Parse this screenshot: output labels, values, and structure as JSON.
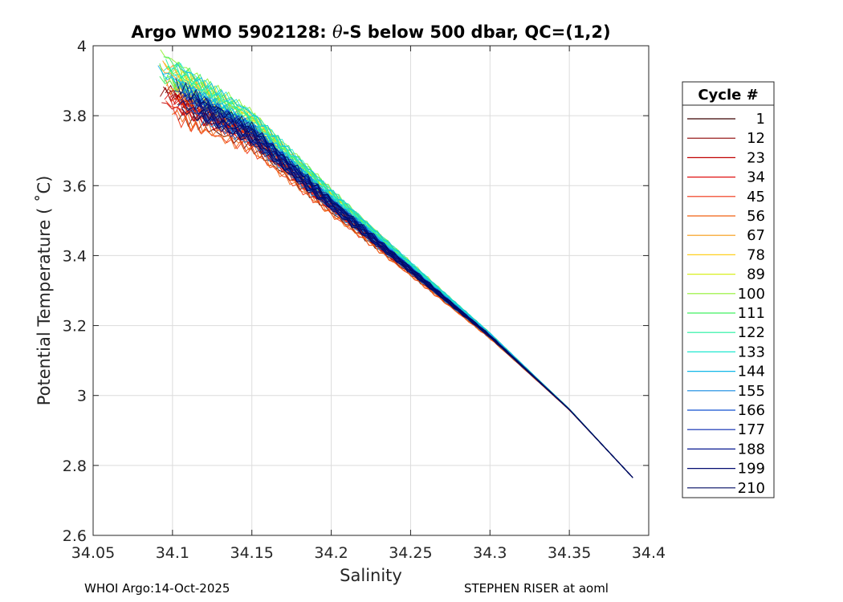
{
  "chart_data": {
    "type": "line",
    "title_prefix": "Argo WMO 5902128: ",
    "title_theta": "θ",
    "title_suffix": "-S below 500 dbar,  QC=(1,2)",
    "xlabel": "Salinity",
    "ylabel": "Potential Temperature ( ˚C)",
    "xlim": [
      34.05,
      34.4
    ],
    "ylim": [
      2.6,
      4.0
    ],
    "xticks": [
      34.05,
      34.1,
      34.15,
      34.2,
      34.25,
      34.3,
      34.35,
      34.4
    ],
    "xtick_labels": [
      "34.05",
      "34.1",
      "34.15",
      "34.2",
      "34.25",
      "34.3",
      "34.35",
      "34.4"
    ],
    "yticks": [
      2.6,
      2.8,
      3.0,
      3.2,
      3.4,
      3.6,
      3.8,
      4.0
    ],
    "ytick_labels": [
      "2.6",
      "2.8",
      "3",
      "3.2",
      "3.4",
      "3.6",
      "3.8",
      "4"
    ],
    "grid": true,
    "legend_title": "Cycle #",
    "legend_position": "right",
    "series": [
      {
        "name": "1",
        "color": "#3a0000"
      },
      {
        "name": "12",
        "color": "#8c0000"
      },
      {
        "name": "23",
        "color": "#c00000"
      },
      {
        "name": "34",
        "color": "#e01010"
      },
      {
        "name": "45",
        "color": "#f03010"
      },
      {
        "name": "56",
        "color": "#f06010"
      },
      {
        "name": "67",
        "color": "#f59a10"
      },
      {
        "name": "78",
        "color": "#ffd020"
      },
      {
        "name": "89",
        "color": "#d8f020"
      },
      {
        "name": "100",
        "color": "#90f030"
      },
      {
        "name": "111",
        "color": "#40f060"
      },
      {
        "name": "122",
        "color": "#20f0a0"
      },
      {
        "name": "133",
        "color": "#20e8d0"
      },
      {
        "name": "144",
        "color": "#10b8e8"
      },
      {
        "name": "155",
        "color": "#1088e0"
      },
      {
        "name": "166",
        "color": "#1050d0"
      },
      {
        "name": "177",
        "color": "#0828b0"
      },
      {
        "name": "188",
        "color": "#061890"
      },
      {
        "name": "199",
        "color": "#040c70"
      },
      {
        "name": "210",
        "color": "#000a60"
      }
    ],
    "profile_shape": {
      "s": [
        34.095,
        34.15,
        34.2,
        34.25,
        34.3,
        34.35,
        34.39
      ],
      "t": [
        3.88,
        3.75,
        3.55,
        3.36,
        3.17,
        2.96,
        2.765
      ]
    }
  },
  "footer": {
    "left": "WHOI Argo:14-Oct-2025",
    "right": "STEPHEN RISER at aoml"
  }
}
